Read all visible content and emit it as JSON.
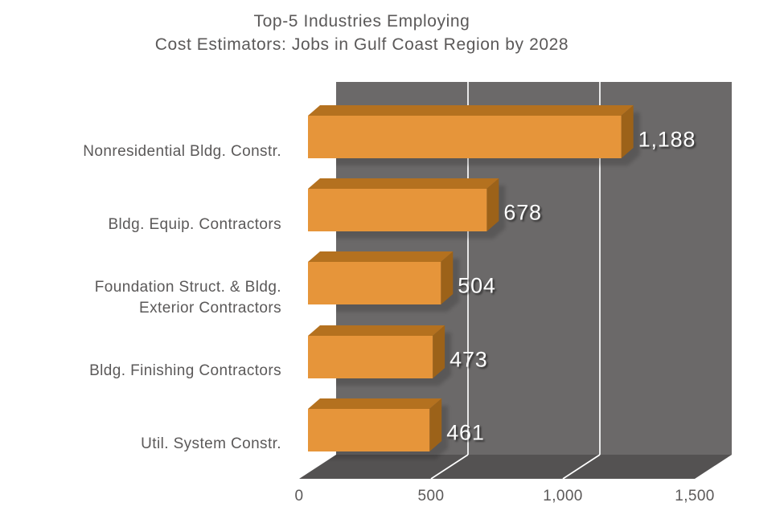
{
  "chart_data": {
    "type": "bar",
    "orientation": "horizontal",
    "style": "3d",
    "title": "Top-5 Industries Employing Cost Estimators: Jobs in Gulf Coast Region by 2028",
    "title_lines": [
      "Top-5 Industries Employing",
      "Cost Estimators: Jobs in Gulf Coast Region by 2028"
    ],
    "categories": [
      "Nonresidential Bldg. Constr.",
      "Bldg. Equip. Contractors",
      "Foundation Struct. & Bldg.\nExterior Contractors",
      "Bldg. Finishing Contractors",
      "Util. System Constr."
    ],
    "values": [
      1188,
      678,
      504,
      473,
      461
    ],
    "value_labels": [
      "1,188",
      "678",
      "504",
      "473",
      "461"
    ],
    "x_axis": {
      "min": 0,
      "max": 1500,
      "ticks": [
        0,
        500,
        1000,
        1500
      ],
      "tick_labels": [
        "0",
        "500",
        "1,000",
        "1,500"
      ],
      "gridlines": [
        500,
        1000
      ]
    },
    "legend": "none",
    "grid": "vertical-white-lines",
    "colors": {
      "bar_front": "#E6953A",
      "bar_top": "#B4711F",
      "bar_side": "#9C6219",
      "wall": "#6B6969",
      "floor": "#545252",
      "gridline": "#FFFFFF",
      "text": "#5B5959",
      "value_text": "#FFFFFF"
    }
  }
}
